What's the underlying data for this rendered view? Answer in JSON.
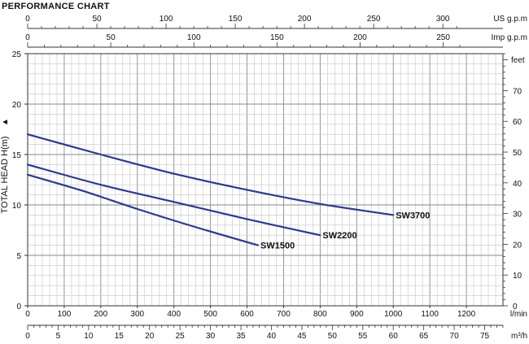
{
  "chart_data": {
    "type": "line",
    "title": "PERFORMANCE CHART",
    "ylabel": "TOTAL HEAD H(m)",
    "ylabel_arrow": "▲",
    "ylim": [
      0,
      25
    ],
    "y_ticks": [
      "0",
      "5",
      "10",
      "15",
      "20",
      "25"
    ],
    "xlim": [
      0,
      1300
    ],
    "x_unit": "l/min",
    "x_ticks": [
      "0",
      "100",
      "200",
      "300",
      "400",
      "500",
      "600",
      "700",
      "800",
      "900",
      "1000",
      "1100",
      "1200"
    ],
    "right_axis": {
      "unit": "feet",
      "ticks": [
        "0",
        "10",
        "20",
        "30",
        "40",
        "50",
        "60",
        "70"
      ]
    },
    "top_axes": [
      {
        "unit": "US g.p.m",
        "ticks": [
          "0",
          "50",
          "100",
          "150",
          "200",
          "250",
          "300"
        ]
      },
      {
        "unit": "Imp g.p.m",
        "ticks": [
          "0",
          "50",
          "100",
          "150",
          "200",
          "250"
        ]
      }
    ],
    "bottom_axis2": {
      "unit": "m³/h",
      "ticks": [
        "0",
        "5",
        "10",
        "15",
        "20",
        "25",
        "30",
        "35",
        "40",
        "45",
        "50",
        "55",
        "60",
        "65",
        "70",
        "75"
      ]
    },
    "series": [
      {
        "name": "SW3700",
        "color": "#2b3a8c",
        "x": [
          0,
          200,
          400,
          600,
          800,
          1000
        ],
        "y": [
          17.0,
          15.0,
          13.1,
          11.5,
          10.1,
          9.0
        ]
      },
      {
        "name": "SW2200",
        "color": "#2b3a8c",
        "x": [
          0,
          200,
          400,
          600,
          800
        ],
        "y": [
          14.0,
          12.0,
          10.3,
          8.6,
          7.0
        ]
      },
      {
        "name": "SW1500",
        "color": "#2b3a8c",
        "x": [
          0,
          150,
          300,
          450,
          630
        ],
        "y": [
          13.0,
          11.4,
          9.6,
          7.9,
          6.0
        ]
      }
    ]
  }
}
